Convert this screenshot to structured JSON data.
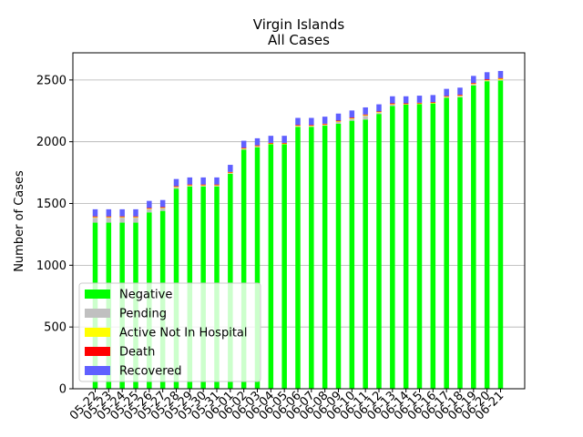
{
  "chart_data": {
    "type": "bar",
    "stacked": true,
    "title": "Virgin Islands",
    "subtitle": "All Cases",
    "xlabel": "",
    "ylabel": "Number of Cases",
    "ylim": [
      0,
      2720
    ],
    "yticks": [
      0,
      500,
      1000,
      1500,
      2000,
      2500
    ],
    "grid": "horizontal",
    "legend_position": "lower-left",
    "categories": [
      "05-22",
      "05-23",
      "05-24",
      "05-25",
      "05-26",
      "05-27",
      "05-28",
      "05-29",
      "05-30",
      "05-31",
      "06-01",
      "06-02",
      "06-03",
      "06-04",
      "06-05",
      "06-06",
      "06-07",
      "06-08",
      "06-09",
      "06-10",
      "06-11",
      "06-12",
      "06-13",
      "06-14",
      "06-15",
      "06-16",
      "06-17",
      "06-18",
      "06-19",
      "06-20",
      "06-21"
    ],
    "series": [
      {
        "name": "Negative",
        "color": "#00ff00",
        "values": [
          1345,
          1345,
          1345,
          1345,
          1428,
          1440,
          1620,
          1638,
          1638,
          1638,
          1740,
          1935,
          1955,
          1980,
          1980,
          2120,
          2120,
          2130,
          2145,
          2170,
          2180,
          2225,
          2290,
          2300,
          2305,
          2310,
          2355,
          2360,
          2455,
          2490,
          2495
        ]
      },
      {
        "name": "Pending",
        "color": "#c0c0c0",
        "values": [
          40,
          40,
          40,
          40,
          25,
          20,
          10,
          5,
          5,
          5,
          5,
          5,
          5,
          0,
          0,
          5,
          5,
          5,
          15,
          15,
          30,
          10,
          10,
          0,
          0,
          0,
          5,
          10,
          10,
          5,
          5
        ]
      },
      {
        "name": "Active Not In Hospital",
        "color": "#ffff00",
        "values": [
          5,
          5,
          5,
          5,
          5,
          5,
          5,
          5,
          5,
          5,
          5,
          5,
          5,
          5,
          5,
          5,
          5,
          5,
          5,
          5,
          5,
          5,
          5,
          5,
          5,
          5,
          5,
          5,
          5,
          5,
          10
        ]
      },
      {
        "name": "Death",
        "color": "#ff0000",
        "values": [
          6,
          6,
          6,
          6,
          6,
          6,
          6,
          6,
          6,
          6,
          6,
          6,
          6,
          6,
          6,
          6,
          6,
          6,
          6,
          6,
          6,
          6,
          6,
          6,
          6,
          6,
          6,
          6,
          6,
          6,
          6
        ]
      },
      {
        "name": "Recovered",
        "color": "#6060ff",
        "values": [
          57,
          57,
          57,
          57,
          57,
          57,
          57,
          57,
          57,
          57,
          57,
          57,
          57,
          57,
          57,
          57,
          57,
          57,
          57,
          57,
          57,
          57,
          57,
          57,
          57,
          57,
          57,
          57,
          57,
          57,
          57
        ]
      }
    ]
  }
}
